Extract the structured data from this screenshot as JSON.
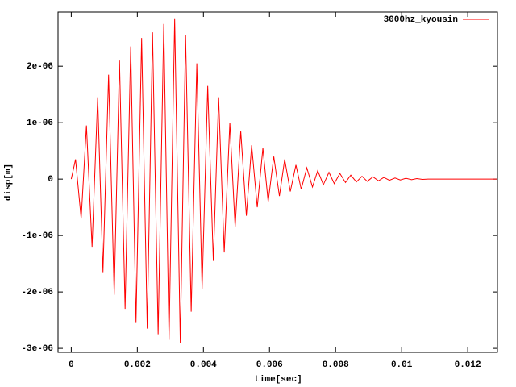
{
  "chart_data": {
    "type": "line",
    "xlabel": "time[sec]",
    "ylabel": "disp[m]",
    "legend": "top-right",
    "x": [
      0,
      0.00013,
      0.0003,
      0.00046,
      0.00063,
      0.0008,
      0.00096,
      0.00113,
      0.0013,
      0.00146,
      0.00163,
      0.0018,
      0.00196,
      0.00213,
      0.0023,
      0.00246,
      0.00263,
      0.0028,
      0.00296,
      0.00313,
      0.0033,
      0.00346,
      0.00363,
      0.0038,
      0.00396,
      0.00413,
      0.0043,
      0.00446,
      0.00463,
      0.0048,
      0.00496,
      0.00513,
      0.0053,
      0.00546,
      0.00563,
      0.0058,
      0.00596,
      0.00613,
      0.0063,
      0.00646,
      0.00663,
      0.0068,
      0.00696,
      0.00713,
      0.0073,
      0.00746,
      0.00763,
      0.0078,
      0.00796,
      0.00813,
      0.0083,
      0.00846,
      0.00863,
      0.0088,
      0.00896,
      0.00913,
      0.0093,
      0.00946,
      0.00963,
      0.0098,
      0.00996,
      0.01013,
      0.0103,
      0.01046,
      0.01063,
      0.0108,
      0.0129
    ],
    "series": [
      {
        "name": "3000hz_kyousin",
        "color": "#ff0000",
        "values": [
          0,
          3.5e-07,
          -7e-07,
          9.5e-07,
          -1.2e-06,
          1.45e-06,
          -1.65e-06,
          1.85e-06,
          -2.05e-06,
          2.1e-06,
          -2.3e-06,
          2.35e-06,
          -2.55e-06,
          2.5e-06,
          -2.65e-06,
          2.6e-06,
          -2.75e-06,
          2.75e-06,
          -2.85e-06,
          2.85e-06,
          -2.9e-06,
          2.55e-06,
          -2.35e-06,
          2.05e-06,
          -1.95e-06,
          1.65e-06,
          -1.45e-06,
          1.45e-06,
          -1.3e-06,
          1e-06,
          -8.5e-07,
          8.5e-07,
          -6.5e-07,
          6e-07,
          -5e-07,
          5.5e-07,
          -4e-07,
          4e-07,
          -3e-07,
          3.5e-07,
          -2.2e-07,
          2.5e-07,
          -1.8e-07,
          2e-07,
          -1.4e-07,
          1.5e-07,
          -1e-07,
          1.2e-07,
          -8e-08,
          1e-07,
          -6e-08,
          7e-08,
          -5e-08,
          5e-08,
          -4e-08,
          4e-08,
          -3e-08,
          3e-08,
          -2e-08,
          2e-08,
          -1.5e-08,
          1.5e-08,
          -1e-08,
          1e-08,
          -5e-09,
          0,
          0
        ]
      }
    ],
    "xlim": [
      -0.0004,
      0.0129
    ],
    "xticks": [
      0,
      0.002,
      0.004,
      0.006,
      0.008,
      0.01,
      0.012
    ],
    "ylim": [
      -3.07e-06,
      2.96e-06
    ],
    "yticks": [
      {
        "value": -3e-06,
        "label": "-3e-06"
      },
      {
        "value": -2e-06,
        "label": "-2e-06"
      },
      {
        "value": -1e-06,
        "label": "-1e-06"
      },
      0,
      {
        "value": 1e-06,
        "label": "1e-06"
      },
      {
        "value": 2e-06,
        "label": "2e-06"
      }
    ]
  }
}
